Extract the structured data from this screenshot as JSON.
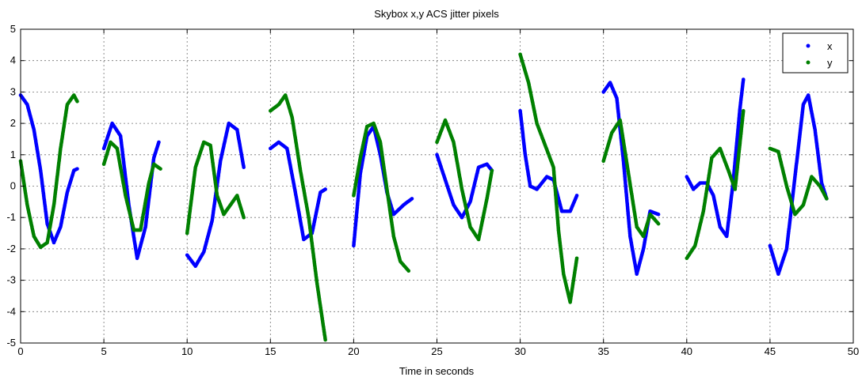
{
  "chart_data": {
    "type": "scatter",
    "title": "Skybox x,y ACS jitter pixels",
    "xlabel": "Time in seconds",
    "ylabel": "",
    "xlim": [
      0,
      50
    ],
    "ylim": [
      -5,
      5
    ],
    "xticks": [
      "0",
      "5",
      "10",
      "15",
      "20",
      "25",
      "30",
      "35",
      "40",
      "45",
      "50"
    ],
    "yticks": [
      "5",
      "4",
      "3",
      "2",
      "1",
      "0",
      "-1",
      "-2",
      "-3",
      "-4",
      "-5"
    ],
    "grid": true,
    "legend": {
      "position": "top-right",
      "entries": [
        "x",
        "y"
      ]
    },
    "series": [
      {
        "name": "x",
        "color": "#0000ff",
        "segments": [
          [
            [
              0,
              2.9
            ],
            [
              0.4,
              2.6
            ],
            [
              0.8,
              1.8
            ],
            [
              1.2,
              0.5
            ],
            [
              1.6,
              -1.2
            ],
            [
              2.0,
              -1.8
            ],
            [
              2.4,
              -1.3
            ],
            [
              2.8,
              -0.2
            ],
            [
              3.2,
              0.5
            ],
            [
              3.4,
              0.55
            ]
          ],
          [
            [
              5,
              1.2
            ],
            [
              5.5,
              2.0
            ],
            [
              6.0,
              1.6
            ],
            [
              6.5,
              -0.6
            ],
            [
              7.0,
              -2.3
            ],
            [
              7.5,
              -1.3
            ],
            [
              8.0,
              0.9
            ],
            [
              8.3,
              1.4
            ]
          ],
          [
            [
              10,
              -2.2
            ],
            [
              10.5,
              -2.55
            ],
            [
              11,
              -2.1
            ],
            [
              11.5,
              -1.1
            ],
            [
              12,
              0.8
            ],
            [
              12.5,
              2.0
            ],
            [
              13,
              1.8
            ],
            [
              13.4,
              0.6
            ]
          ],
          [
            [
              15,
              1.2
            ],
            [
              15.5,
              1.4
            ],
            [
              16,
              1.2
            ],
            [
              16.5,
              -0.2
            ],
            [
              17,
              -1.7
            ],
            [
              17.5,
              -1.5
            ],
            [
              18,
              -0.2
            ],
            [
              18.3,
              -0.1
            ]
          ],
          [
            [
              20,
              -1.9
            ],
            [
              20.4,
              0.4
            ],
            [
              20.8,
              1.6
            ],
            [
              21.2,
              1.9
            ],
            [
              21.6,
              1.0
            ],
            [
              22,
              -0.2
            ],
            [
              22.4,
              -0.9
            ],
            [
              23,
              -0.6
            ],
            [
              23.5,
              -0.4
            ]
          ],
          [
            [
              25,
              1.0
            ],
            [
              25.5,
              0.2
            ],
            [
              26,
              -0.6
            ],
            [
              26.5,
              -1.0
            ],
            [
              27,
              -0.5
            ],
            [
              27.5,
              0.6
            ],
            [
              28,
              0.7
            ],
            [
              28.3,
              0.5
            ]
          ],
          [
            [
              30,
              2.4
            ],
            [
              30.3,
              1.0
            ],
            [
              30.6,
              0.0
            ],
            [
              31,
              -0.1
            ],
            [
              31.6,
              0.3
            ],
            [
              32,
              0.2
            ],
            [
              32.5,
              -0.8
            ],
            [
              33,
              -0.8
            ],
            [
              33.4,
              -0.3
            ]
          ],
          [
            [
              35,
              3.0
            ],
            [
              35.4,
              3.3
            ],
            [
              35.8,
              2.8
            ],
            [
              36.2,
              0.8
            ],
            [
              36.6,
              -1.6
            ],
            [
              37,
              -2.8
            ],
            [
              37.4,
              -2.0
            ],
            [
              37.8,
              -0.8
            ],
            [
              38.3,
              -0.9
            ]
          ],
          [
            [
              40,
              0.3
            ],
            [
              40.4,
              -0.1
            ],
            [
              40.8,
              0.1
            ],
            [
              41.2,
              0.1
            ],
            [
              41.6,
              -0.3
            ],
            [
              42,
              -1.3
            ],
            [
              42.4,
              -1.6
            ],
            [
              42.8,
              0.2
            ],
            [
              43.2,
              2.5
            ],
            [
              43.4,
              3.4
            ]
          ],
          [
            [
              45,
              -1.9
            ],
            [
              45.5,
              -2.8
            ],
            [
              46,
              -2.0
            ],
            [
              46.5,
              0.3
            ],
            [
              47,
              2.6
            ],
            [
              47.3,
              2.9
            ],
            [
              47.7,
              1.8
            ],
            [
              48.1,
              0.1
            ],
            [
              48.4,
              -0.4
            ]
          ]
        ]
      },
      {
        "name": "y",
        "color": "#008000",
        "segments": [
          [
            [
              0,
              0.8
            ],
            [
              0.4,
              -0.6
            ],
            [
              0.8,
              -1.6
            ],
            [
              1.2,
              -1.95
            ],
            [
              1.6,
              -1.8
            ],
            [
              2.0,
              -0.6
            ],
            [
              2.4,
              1.2
            ],
            [
              2.8,
              2.6
            ],
            [
              3.2,
              2.9
            ],
            [
              3.4,
              2.7
            ]
          ],
          [
            [
              5,
              0.7
            ],
            [
              5.4,
              1.4
            ],
            [
              5.8,
              1.2
            ],
            [
              6.3,
              -0.3
            ],
            [
              6.8,
              -1.4
            ],
            [
              7.2,
              -1.4
            ],
            [
              7.7,
              0.1
            ],
            [
              8.0,
              0.7
            ],
            [
              8.4,
              0.55
            ]
          ],
          [
            [
              10,
              -1.5
            ],
            [
              10.5,
              0.6
            ],
            [
              11,
              1.4
            ],
            [
              11.4,
              1.3
            ],
            [
              11.8,
              -0.3
            ],
            [
              12.2,
              -0.9
            ],
            [
              12.6,
              -0.6
            ],
            [
              13,
              -0.3
            ],
            [
              13.4,
              -1.0
            ]
          ],
          [
            [
              15,
              2.4
            ],
            [
              15.5,
              2.6
            ],
            [
              15.9,
              2.9
            ],
            [
              16.3,
              2.2
            ],
            [
              16.8,
              0.5
            ],
            [
              17.3,
              -1.0
            ],
            [
              17.8,
              -3.1
            ],
            [
              18.3,
              -4.9
            ]
          ],
          [
            [
              20,
              -0.3
            ],
            [
              20.4,
              0.9
            ],
            [
              20.8,
              1.9
            ],
            [
              21.2,
              2.0
            ],
            [
              21.6,
              1.4
            ],
            [
              22,
              -0.1
            ],
            [
              22.4,
              -1.6
            ],
            [
              22.8,
              -2.4
            ],
            [
              23.3,
              -2.7
            ]
          ],
          [
            [
              25,
              1.4
            ],
            [
              25.5,
              2.1
            ],
            [
              26,
              1.4
            ],
            [
              26.5,
              -0.1
            ],
            [
              27,
              -1.3
            ],
            [
              27.5,
              -1.7
            ],
            [
              28,
              -0.4
            ],
            [
              28.3,
              0.5
            ]
          ],
          [
            [
              30,
              4.2
            ],
            [
              30.5,
              3.3
            ],
            [
              31,
              2.0
            ],
            [
              31.5,
              1.3
            ],
            [
              32,
              0.6
            ],
            [
              32.3,
              -1.4
            ],
            [
              32.6,
              -2.8
            ],
            [
              33,
              -3.7
            ],
            [
              33.4,
              -2.3
            ]
          ],
          [
            [
              35,
              0.8
            ],
            [
              35.5,
              1.7
            ],
            [
              36,
              2.1
            ],
            [
              36.5,
              0.4
            ],
            [
              37,
              -1.3
            ],
            [
              37.4,
              -1.6
            ],
            [
              37.8,
              -0.9
            ],
            [
              38.3,
              -1.2
            ]
          ],
          [
            [
              40,
              -2.3
            ],
            [
              40.5,
              -1.9
            ],
            [
              41,
              -0.8
            ],
            [
              41.5,
              0.9
            ],
            [
              42,
              1.2
            ],
            [
              42.5,
              0.5
            ],
            [
              42.9,
              -0.1
            ],
            [
              43.4,
              2.4
            ]
          ],
          [
            [
              45,
              1.2
            ],
            [
              45.5,
              1.1
            ],
            [
              46,
              0.0
            ],
            [
              46.5,
              -0.9
            ],
            [
              47,
              -0.6
            ],
            [
              47.5,
              0.3
            ],
            [
              48,
              0.0
            ],
            [
              48.4,
              -0.4
            ]
          ]
        ]
      }
    ]
  }
}
